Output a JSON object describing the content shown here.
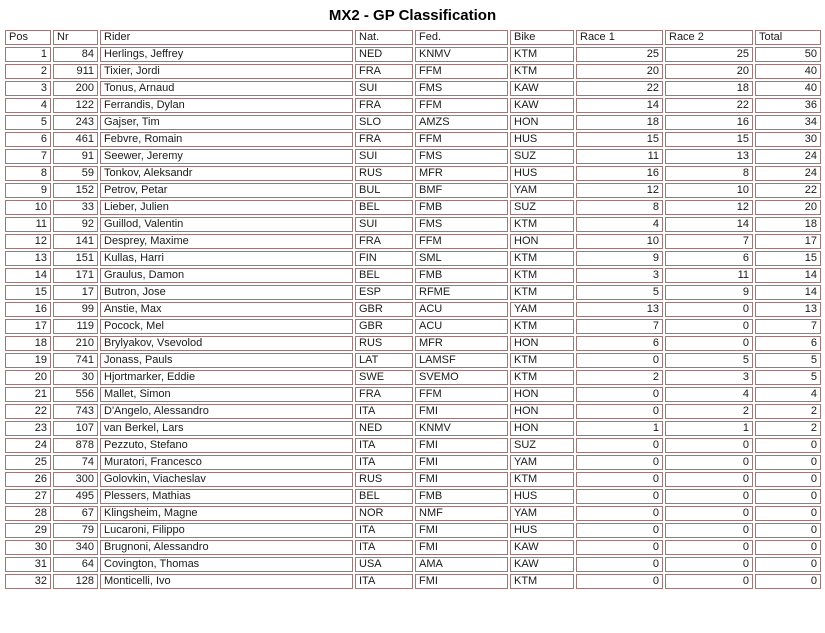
{
  "title": "MX2 - GP Classification",
  "colors": {
    "border": "#9c7878",
    "text": "#1a1a1a",
    "background": "#ffffff"
  },
  "table": {
    "columns": [
      {
        "key": "pos",
        "label": "Pos",
        "align": "right"
      },
      {
        "key": "nr",
        "label": "Nr",
        "align": "right"
      },
      {
        "key": "rider",
        "label": "Rider",
        "align": "left"
      },
      {
        "key": "nat",
        "label": "Nat.",
        "align": "left"
      },
      {
        "key": "fed",
        "label": "Fed.",
        "align": "left"
      },
      {
        "key": "bike",
        "label": "Bike",
        "align": "left"
      },
      {
        "key": "race1",
        "label": "Race 1",
        "align": "right"
      },
      {
        "key": "race2",
        "label": "Race 2",
        "align": "right"
      },
      {
        "key": "total",
        "label": "Total",
        "align": "right"
      }
    ],
    "rows": [
      [
        "1",
        "84",
        "Herlings, Jeffrey",
        "NED",
        "KNMV",
        "KTM",
        "25",
        "25",
        "50"
      ],
      [
        "2",
        "911",
        "Tixier, Jordi",
        "FRA",
        "FFM",
        "KTM",
        "20",
        "20",
        "40"
      ],
      [
        "3",
        "200",
        "Tonus, Arnaud",
        "SUI",
        "FMS",
        "KAW",
        "22",
        "18",
        "40"
      ],
      [
        "4",
        "122",
        "Ferrandis, Dylan",
        "FRA",
        "FFM",
        "KAW",
        "14",
        "22",
        "36"
      ],
      [
        "5",
        "243",
        "Gajser, Tim",
        "SLO",
        "AMZS",
        "HON",
        "18",
        "16",
        "34"
      ],
      [
        "6",
        "461",
        "Febvre, Romain",
        "FRA",
        "FFM",
        "HUS",
        "15",
        "15",
        "30"
      ],
      [
        "7",
        "91",
        "Seewer, Jeremy",
        "SUI",
        "FMS",
        "SUZ",
        "11",
        "13",
        "24"
      ],
      [
        "8",
        "59",
        "Tonkov, Aleksandr",
        "RUS",
        "MFR",
        "HUS",
        "16",
        "8",
        "24"
      ],
      [
        "9",
        "152",
        "Petrov, Petar",
        "BUL",
        "BMF",
        "YAM",
        "12",
        "10",
        "22"
      ],
      [
        "10",
        "33",
        "Lieber, Julien",
        "BEL",
        "FMB",
        "SUZ",
        "8",
        "12",
        "20"
      ],
      [
        "11",
        "92",
        "Guillod, Valentin",
        "SUI",
        "FMS",
        "KTM",
        "4",
        "14",
        "18"
      ],
      [
        "12",
        "141",
        "Desprey, Maxime",
        "FRA",
        "FFM",
        "HON",
        "10",
        "7",
        "17"
      ],
      [
        "13",
        "151",
        "Kullas, Harri",
        "FIN",
        "SML",
        "KTM",
        "9",
        "6",
        "15"
      ],
      [
        "14",
        "171",
        "Graulus, Damon",
        "BEL",
        "FMB",
        "KTM",
        "3",
        "11",
        "14"
      ],
      [
        "15",
        "17",
        "Butron, Jose",
        "ESP",
        "RFME",
        "KTM",
        "5",
        "9",
        "14"
      ],
      [
        "16",
        "99",
        "Anstie, Max",
        "GBR",
        "ACU",
        "YAM",
        "13",
        "0",
        "13"
      ],
      [
        "17",
        "119",
        "Pocock, Mel",
        "GBR",
        "ACU",
        "KTM",
        "7",
        "0",
        "7"
      ],
      [
        "18",
        "210",
        "Brylyakov, Vsevolod",
        "RUS",
        "MFR",
        "HON",
        "6",
        "0",
        "6"
      ],
      [
        "19",
        "741",
        "Jonass, Pauls",
        "LAT",
        "LAMSF",
        "KTM",
        "0",
        "5",
        "5"
      ],
      [
        "20",
        "30",
        "Hjortmarker, Eddie",
        "SWE",
        "SVEMO",
        "KTM",
        "2",
        "3",
        "5"
      ],
      [
        "21",
        "556",
        "Mallet, Simon",
        "FRA",
        "FFM",
        "HON",
        "0",
        "4",
        "4"
      ],
      [
        "22",
        "743",
        "D'Angelo, Alessandro",
        "ITA",
        "FMI",
        "HON",
        "0",
        "2",
        "2"
      ],
      [
        "23",
        "107",
        "van Berkel, Lars",
        "NED",
        "KNMV",
        "HON",
        "1",
        "1",
        "2"
      ],
      [
        "24",
        "878",
        "Pezzuto, Stefano",
        "ITA",
        "FMI",
        "SUZ",
        "0",
        "0",
        "0"
      ],
      [
        "25",
        "74",
        "Muratori, Francesco",
        "ITA",
        "FMI",
        "YAM",
        "0",
        "0",
        "0"
      ],
      [
        "26",
        "300",
        "Golovkin, Viacheslav",
        "RUS",
        "FMI",
        "KTM",
        "0",
        "0",
        "0"
      ],
      [
        "27",
        "495",
        "Plessers, Mathias",
        "BEL",
        "FMB",
        "HUS",
        "0",
        "0",
        "0"
      ],
      [
        "28",
        "67",
        "Klingsheim, Magne",
        "NOR",
        "NMF",
        "YAM",
        "0",
        "0",
        "0"
      ],
      [
        "29",
        "79",
        "Lucaroni, Filippo",
        "ITA",
        "FMI",
        "HUS",
        "0",
        "0",
        "0"
      ],
      [
        "30",
        "340",
        "Brugnoni, Alessandro",
        "ITA",
        "FMI",
        "KAW",
        "0",
        "0",
        "0"
      ],
      [
        "31",
        "64",
        "Covington, Thomas",
        "USA",
        "AMA",
        "KAW",
        "0",
        "0",
        "0"
      ],
      [
        "32",
        "128",
        "Monticelli, Ivo",
        "ITA",
        "FMI",
        "KTM",
        "0",
        "0",
        "0"
      ]
    ]
  }
}
